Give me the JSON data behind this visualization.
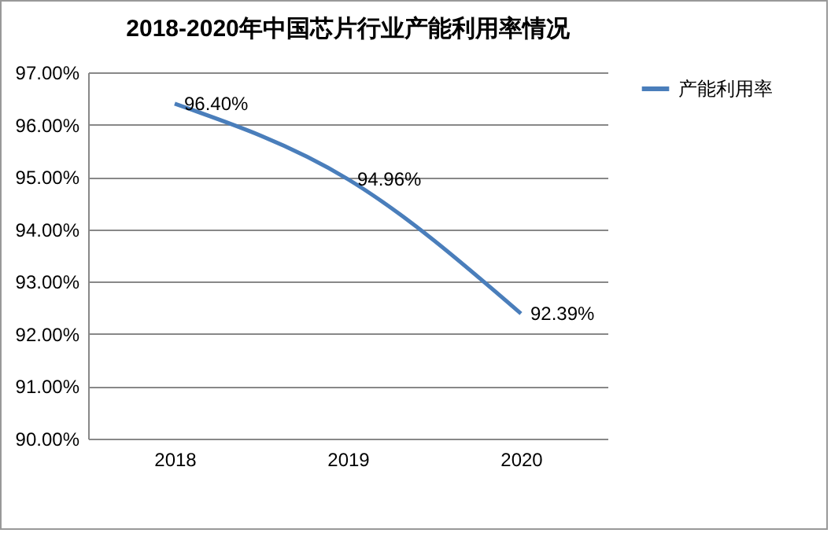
{
  "chart_data": {
    "type": "line",
    "title": "2018-2020年中国芯片行业产能利用率情况",
    "categories": [
      "2018",
      "2019",
      "2020"
    ],
    "series": [
      {
        "name": "产能利用率",
        "color": "#4a7ebb",
        "values": [
          96.4,
          94.96,
          92.39
        ],
        "value_labels": [
          "96.40%",
          "94.96%",
          "92.39%"
        ]
      }
    ],
    "ylim": [
      90,
      97
    ],
    "yticks": [
      {
        "value": 90,
        "label": "90.00%"
      },
      {
        "value": 91,
        "label": "91.00%"
      },
      {
        "value": 92,
        "label": "92.00%"
      },
      {
        "value": 93,
        "label": "93.00%"
      },
      {
        "value": 94,
        "label": "94.00%"
      },
      {
        "value": 95,
        "label": "95.00%"
      },
      {
        "value": 96,
        "label": "96.00%"
      },
      {
        "value": 97,
        "label": "97.00%"
      }
    ],
    "grid": "y",
    "legend": "right",
    "marker": "none",
    "line_style": "solid"
  }
}
